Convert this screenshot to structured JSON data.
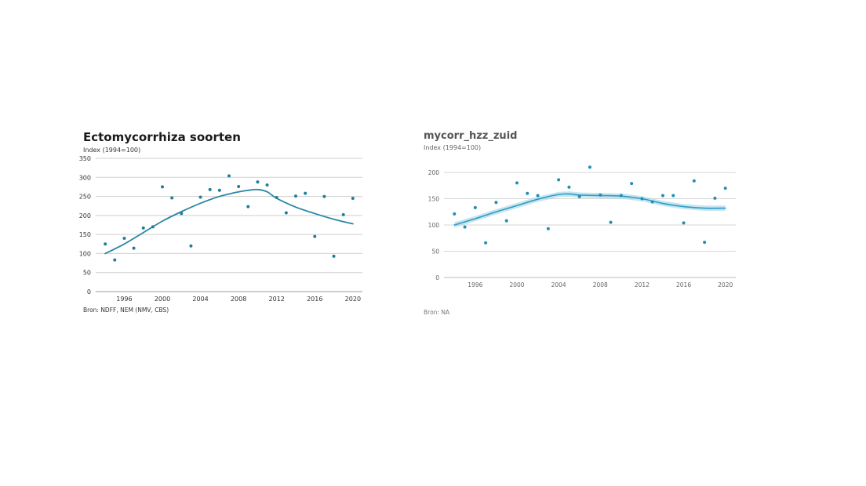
{
  "chart_data": [
    {
      "type": "scatter",
      "title": "Ectomycorrhiza soorten",
      "subtitle": "Index (1994=100)",
      "source": "Bron: NDFF, NEM (NMV, CBS)",
      "xlabel": "",
      "ylabel": "",
      "xlim": [
        1993,
        2021
      ],
      "ylim": [
        0,
        350
      ],
      "xticks": [
        1996,
        2000,
        2004,
        2008,
        2012,
        2016,
        2020
      ],
      "yticks": [
        0,
        50,
        100,
        150,
        200,
        250,
        300,
        350
      ],
      "grid": true,
      "colors": {
        "points": "#1f7f9a",
        "trend": "#2a86a5",
        "grid": "#cfcfcf"
      },
      "points": [
        {
          "x": 1994,
          "y": 125
        },
        {
          "x": 1995,
          "y": 83
        },
        {
          "x": 1996,
          "y": 140
        },
        {
          "x": 1997,
          "y": 114
        },
        {
          "x": 1998,
          "y": 167
        },
        {
          "x": 1999,
          "y": 170
        },
        {
          "x": 2000,
          "y": 275
        },
        {
          "x": 2001,
          "y": 246
        },
        {
          "x": 2002,
          "y": 205
        },
        {
          "x": 2003,
          "y": 120
        },
        {
          "x": 2004,
          "y": 248
        },
        {
          "x": 2005,
          "y": 268
        },
        {
          "x": 2006,
          "y": 266
        },
        {
          "x": 2007,
          "y": 304
        },
        {
          "x": 2008,
          "y": 276
        },
        {
          "x": 2009,
          "y": 223
        },
        {
          "x": 2010,
          "y": 288
        },
        {
          "x": 2011,
          "y": 280
        },
        {
          "x": 2012,
          "y": 247
        },
        {
          "x": 2013,
          "y": 207
        },
        {
          "x": 2014,
          "y": 251
        },
        {
          "x": 2015,
          "y": 258
        },
        {
          "x": 2016,
          "y": 145
        },
        {
          "x": 2017,
          "y": 250
        },
        {
          "x": 2018,
          "y": 93
        },
        {
          "x": 2019,
          "y": 202
        },
        {
          "x": 2020,
          "y": 245
        }
      ],
      "trend": {
        "x": [
          1994,
          1996,
          1998,
          2000,
          2002,
          2004,
          2006,
          2008,
          2009,
          2010,
          2011,
          2012,
          2014,
          2016,
          2018,
          2020
        ],
        "y": [
          100,
          125,
          155,
          185,
          210,
          232,
          250,
          262,
          266,
          268,
          262,
          245,
          222,
          205,
          190,
          178
        ]
      }
    },
    {
      "type": "scatter",
      "title": "mycorr_hzz_zuid",
      "subtitle": "Index (1994=100)",
      "source": "Bron: NA",
      "xlabel": "",
      "ylabel": "",
      "xlim": [
        1993,
        2021
      ],
      "ylim": [
        0,
        200
      ],
      "xticks": [
        1996,
        2000,
        2004,
        2008,
        2012,
        2016,
        2020
      ],
      "yticks": [
        0,
        50,
        100,
        150,
        200
      ],
      "grid": true,
      "colors": {
        "points": "#1e8fb5",
        "trend": "#2e9bc4",
        "band": "#9fd3e6",
        "grid": "#d6d6d6"
      },
      "points": [
        {
          "x": 1994,
          "y": 121
        },
        {
          "x": 1995,
          "y": 96
        },
        {
          "x": 1996,
          "y": 133
        },
        {
          "x": 1997,
          "y": 66
        },
        {
          "x": 1998,
          "y": 143
        },
        {
          "x": 1999,
          "y": 108
        },
        {
          "x": 2000,
          "y": 180
        },
        {
          "x": 2001,
          "y": 160
        },
        {
          "x": 2002,
          "y": 156
        },
        {
          "x": 2003,
          "y": 93
        },
        {
          "x": 2004,
          "y": 186
        },
        {
          "x": 2005,
          "y": 172
        },
        {
          "x": 2006,
          "y": 154
        },
        {
          "x": 2007,
          "y": 210
        },
        {
          "x": 2008,
          "y": 157
        },
        {
          "x": 2009,
          "y": 105
        },
        {
          "x": 2010,
          "y": 156
        },
        {
          "x": 2011,
          "y": 179
        },
        {
          "x": 2012,
          "y": 150
        },
        {
          "x": 2013,
          "y": 144
        },
        {
          "x": 2014,
          "y": 156
        },
        {
          "x": 2015,
          "y": 156
        },
        {
          "x": 2016,
          "y": 104
        },
        {
          "x": 2017,
          "y": 184
        },
        {
          "x": 2018,
          "y": 67
        },
        {
          "x": 2019,
          "y": 151
        },
        {
          "x": 2020,
          "y": 170
        }
      ],
      "trend": {
        "x": [
          1994,
          1996,
          1998,
          2000,
          2002,
          2004,
          2005,
          2006,
          2008,
          2010,
          2012,
          2014,
          2016,
          2018,
          2020
        ],
        "y": [
          100,
          112,
          125,
          137,
          149,
          158,
          159,
          157,
          156,
          155,
          150,
          141,
          135,
          132,
          132
        ],
        "band": 5
      }
    }
  ]
}
